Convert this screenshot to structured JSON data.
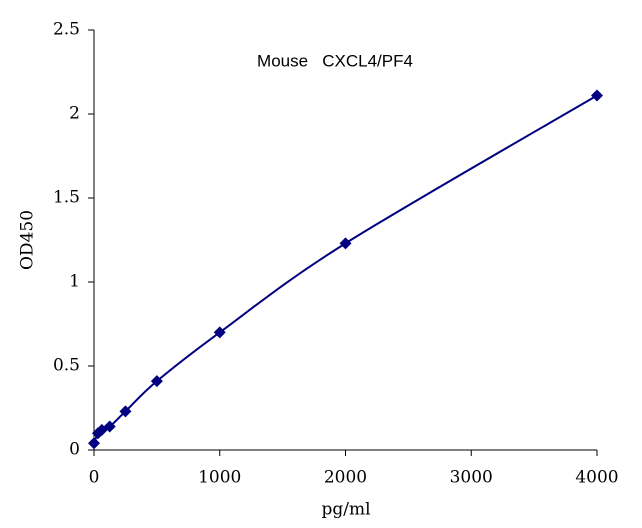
{
  "chart_data": {
    "type": "scatter",
    "title": "Mouse   CXCL4/PF4",
    "x_label": "pg/ml",
    "y_label": "OD450",
    "series": [
      {
        "color": "#000080",
        "x": [
          0,
          31.25,
          62.5,
          125,
          250,
          500,
          1000,
          2000,
          4000
        ],
        "values": [
          0.04,
          0.1,
          0.12,
          0.14,
          0.23,
          0.41,
          0.7,
          1.23,
          2.11
        ]
      }
    ],
    "smooth_line": true,
    "xlim": [
      0,
      4000
    ],
    "xticks": [
      0,
      1000,
      2000,
      3000,
      4000
    ],
    "ylim": [
      0,
      2.5
    ],
    "yticks": [
      0,
      0.5,
      1,
      1.5,
      2,
      2.5
    ],
    "grid": false
  }
}
